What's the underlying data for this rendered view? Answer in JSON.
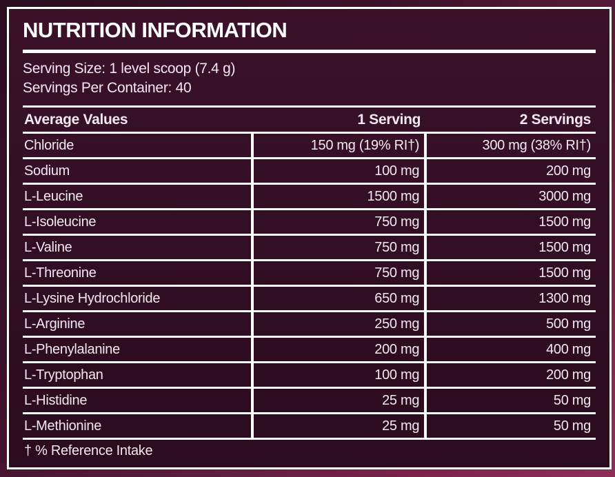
{
  "label": {
    "title": "NUTRITION INFORMATION",
    "serving_size": "Serving Size: 1 level scoop (7.4 g)",
    "servings_per_container": "Servings Per Container: 40",
    "footnote": "† % Reference Intake",
    "colors": {
      "outer_background_dark": "#2a0c1f",
      "outer_background_bright": "#8e2f5a",
      "label_background": "#310e23",
      "border": "#ffffff",
      "text": "#f3e9ef"
    },
    "table": {
      "headers": [
        "Average Values",
        "1 Serving",
        "2 Servings"
      ],
      "rows": [
        {
          "name": "Chloride",
          "serving1": "150 mg (19% RI†)",
          "serving2": "300 mg (38% RI†)"
        },
        {
          "name": "Sodium",
          "serving1": "100 mg",
          "serving2": "200 mg"
        },
        {
          "name": "L-Leucine",
          "serving1": "1500 mg",
          "serving2": "3000 mg"
        },
        {
          "name": "L-Isoleucine",
          "serving1": "750 mg",
          "serving2": "1500 mg"
        },
        {
          "name": "L-Valine",
          "serving1": "750 mg",
          "serving2": "1500 mg"
        },
        {
          "name": "L-Threonine",
          "serving1": "750 mg",
          "serving2": "1500 mg"
        },
        {
          "name": "L-Lysine Hydrochloride",
          "serving1": "650 mg",
          "serving2": "1300 mg"
        },
        {
          "name": "L-Arginine",
          "serving1": "250 mg",
          "serving2": "500 mg"
        },
        {
          "name": "L-Phenylalanine",
          "serving1": "200 mg",
          "serving2": "400 mg"
        },
        {
          "name": "L-Tryptophan",
          "serving1": "100 mg",
          "serving2": "200 mg"
        },
        {
          "name": "L-Histidine",
          "serving1": "25 mg",
          "serving2": "50 mg"
        },
        {
          "name": "L-Methionine",
          "serving1": "25 mg",
          "serving2": "50 mg"
        }
      ]
    }
  }
}
